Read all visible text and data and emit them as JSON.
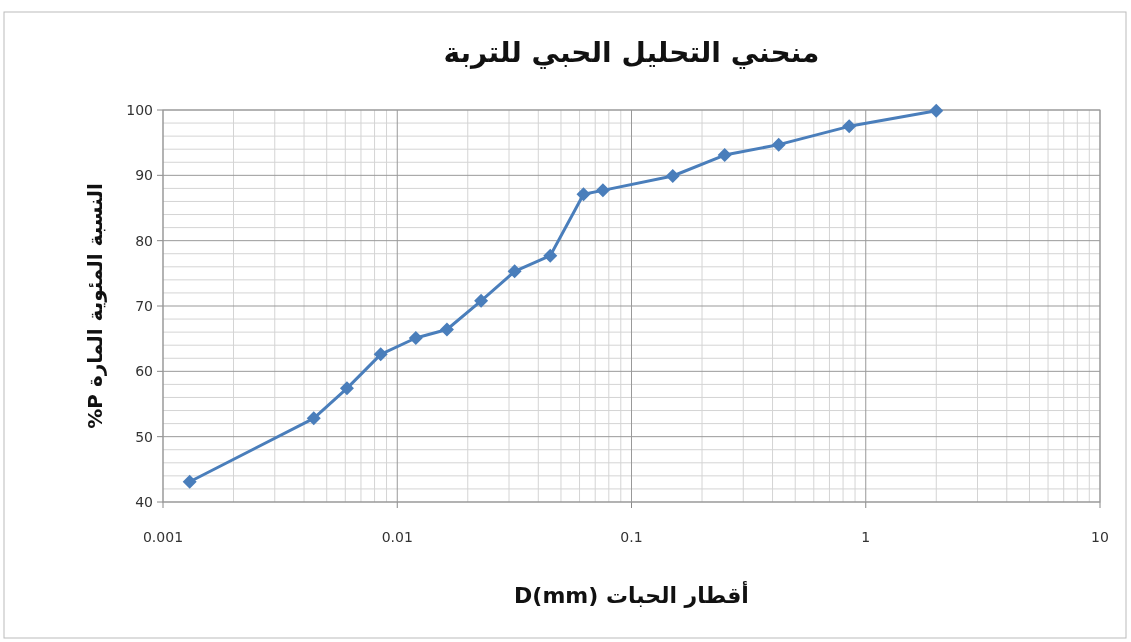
{
  "chart_data": {
    "type": "line",
    "title": "منحني التحليل الحبي للتربة",
    "xlabel": "أقطار الحبات D(mm)",
    "ylabel": "النسبة المئوية المارة P%",
    "x": [
      0.0013,
      0.0044,
      0.0061,
      0.0085,
      0.012,
      0.0163,
      0.0228,
      0.0317,
      0.045,
      0.0624,
      0.0755,
      0.15,
      0.25,
      0.425,
      0.85,
      2.0
    ],
    "series": [
      {
        "color": "#4a7ebb",
        "values": [
          43.1,
          52.8,
          57.4,
          62.6,
          65.1,
          66.4,
          70.8,
          75.3,
          77.7,
          87.1,
          87.7,
          89.9,
          93.1,
          94.7,
          97.5,
          99.9
        ]
      }
    ],
    "log": "x",
    "xlim": [
      0.001,
      10
    ],
    "xticks": [
      0.001,
      0.01,
      0.1,
      1,
      10
    ],
    "ylim": [
      40,
      100
    ],
    "yticks": [
      40,
      50,
      60,
      70,
      80,
      90,
      100
    ],
    "grid": true,
    "marker": "diamond",
    "line_style": "solid"
  }
}
